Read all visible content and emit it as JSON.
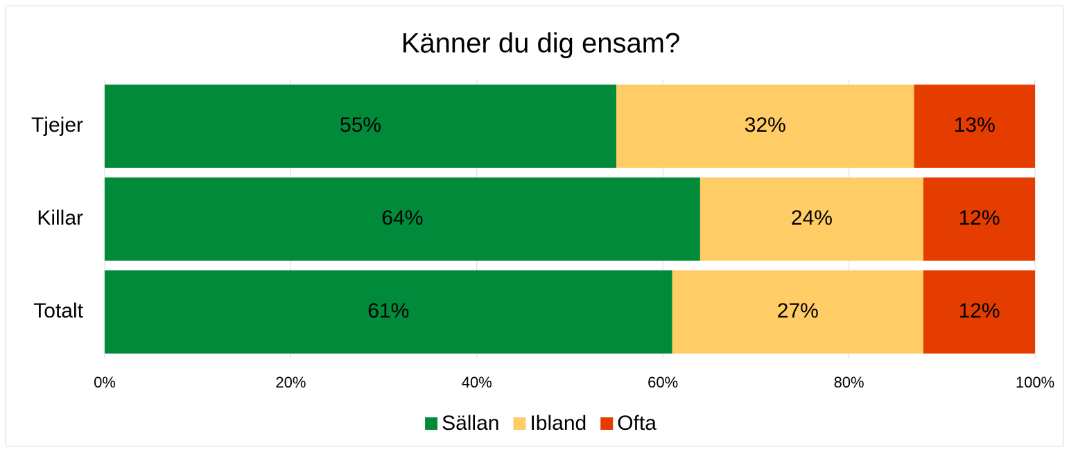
{
  "chart_data": {
    "type": "bar",
    "orientation": "horizontal",
    "stacked": true,
    "title": "Känner du dig ensam?",
    "categories": [
      "Tjejer",
      "Killar",
      "Totalt"
    ],
    "series": [
      {
        "name": "Sällan",
        "color": "#008a3a",
        "values": [
          55,
          64,
          61
        ],
        "value_labels": [
          "55%",
          "64%",
          "61%"
        ]
      },
      {
        "name": "Ibland",
        "color": "#ffcc66",
        "values": [
          32,
          24,
          27
        ],
        "value_labels": [
          "32%",
          "24%",
          "27%"
        ]
      },
      {
        "name": "Ofta",
        "color": "#e53c00",
        "values": [
          13,
          12,
          12
        ],
        "value_labels": [
          "13%",
          "12%",
          "12%"
        ]
      }
    ],
    "xlim": [
      0,
      100
    ],
    "xticks": [
      {
        "value": 0,
        "label": "0%"
      },
      {
        "value": 20,
        "label": "20%"
      },
      {
        "value": 40,
        "label": "40%"
      },
      {
        "value": 60,
        "label": "60%"
      },
      {
        "value": 80,
        "label": "80%"
      },
      {
        "value": 100,
        "label": "100%"
      }
    ],
    "grid": true,
    "legend": "bottom"
  }
}
